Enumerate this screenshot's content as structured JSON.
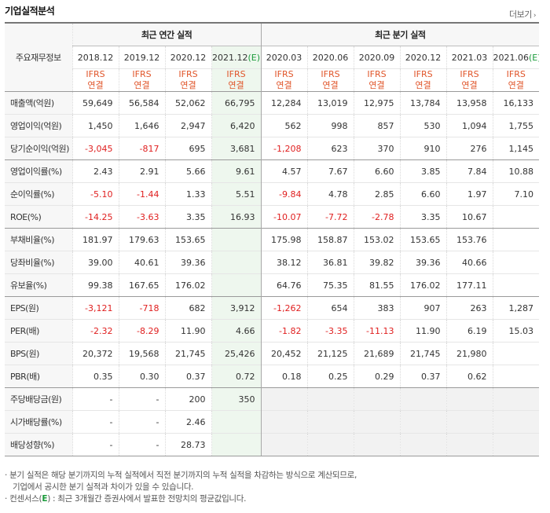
{
  "title": "기업실적분석",
  "more_label": "더보기",
  "more_arrow": "›",
  "main_label": "주요재무정보",
  "annual_group": "최근 연간 실적",
  "quarter_group": "최근 분기 실적",
  "columns": [
    "2018.12",
    "2019.12",
    "2020.12",
    "2021.12(E)",
    "2020.03",
    "2020.06",
    "2020.09",
    "2020.12",
    "2021.03",
    "2021.06(E)"
  ],
  "ifrs_top": "IFRS",
  "ifrs_bottom": "연결",
  "rows": [
    {
      "label": "매출액(억원)",
      "values": [
        "59,649",
        "56,584",
        "52,062",
        "66,795",
        "12,284",
        "13,019",
        "12,975",
        "13,784",
        "13,958",
        "16,133"
      ]
    },
    {
      "label": "영업이익(억원)",
      "values": [
        "1,450",
        "1,646",
        "2,947",
        "6,420",
        "562",
        "998",
        "857",
        "530",
        "1,094",
        "1,755"
      ]
    },
    {
      "label": "당기순이익(억원)",
      "values": [
        "-3,045",
        "-817",
        "695",
        "3,681",
        "-1,208",
        "623",
        "370",
        "910",
        "276",
        "1,145"
      ]
    },
    {
      "label": "영업이익률(%)",
      "values": [
        "2.43",
        "2.91",
        "5.66",
        "9.61",
        "4.57",
        "7.67",
        "6.60",
        "3.85",
        "7.84",
        "10.88"
      ]
    },
    {
      "label": "순이익률(%)",
      "values": [
        "-5.10",
        "-1.44",
        "1.33",
        "5.51",
        "-9.84",
        "4.78",
        "2.85",
        "6.60",
        "1.97",
        "7.10"
      ]
    },
    {
      "label": "ROE(%)",
      "values": [
        "-14.25",
        "-3.63",
        "3.35",
        "16.93",
        "-10.07",
        "-7.72",
        "-2.78",
        "3.35",
        "10.67",
        ""
      ]
    },
    {
      "label": "부채비율(%)",
      "values": [
        "181.97",
        "179.63",
        "153.65",
        "",
        "175.98",
        "158.87",
        "153.02",
        "153.65",
        "153.76",
        ""
      ]
    },
    {
      "label": "당좌비율(%)",
      "values": [
        "39.00",
        "40.61",
        "39.36",
        "",
        "38.12",
        "36.81",
        "39.82",
        "39.36",
        "40.66",
        ""
      ]
    },
    {
      "label": "유보율(%)",
      "values": [
        "99.38",
        "167.65",
        "176.02",
        "",
        "64.76",
        "75.35",
        "81.55",
        "176.02",
        "177.11",
        ""
      ]
    },
    {
      "label": "EPS(원)",
      "values": [
        "-3,121",
        "-718",
        "682",
        "3,912",
        "-1,262",
        "654",
        "383",
        "907",
        "263",
        "1,287"
      ]
    },
    {
      "label": "PER(배)",
      "values": [
        "-2.32",
        "-8.29",
        "11.90",
        "4.66",
        "-1.82",
        "-3.35",
        "-11.13",
        "11.90",
        "6.19",
        "15.03"
      ]
    },
    {
      "label": "BPS(원)",
      "values": [
        "20,372",
        "19,568",
        "21,745",
        "25,426",
        "20,452",
        "21,125",
        "21,689",
        "21,745",
        "21,980",
        ""
      ]
    },
    {
      "label": "PBR(배)",
      "values": [
        "0.35",
        "0.30",
        "0.37",
        "0.72",
        "0.18",
        "0.25",
        "0.29",
        "0.37",
        "0.62",
        ""
      ]
    },
    {
      "label": "주당배당금(원)",
      "values": [
        "-",
        "-",
        "200",
        "350",
        null,
        null,
        null,
        null,
        null,
        null
      ]
    },
    {
      "label": "시가배당률(%)",
      "values": [
        "-",
        "-",
        "2.46",
        "",
        null,
        null,
        null,
        null,
        null,
        null
      ]
    },
    {
      "label": "배당성향(%)",
      "values": [
        "-",
        "-",
        "28.73",
        "",
        null,
        null,
        null,
        null,
        null,
        null
      ]
    }
  ],
  "notes": {
    "line1": "· 분기 실적은 해당 분기까지의 누적 실적에서 직전 분기까지의 누적 실적을 차감하는 방식으로 계산되므로,",
    "line2": "기업에서 공시한 분기 실적과 차이가 있을 수 있습니다.",
    "line3_a": "· 컨센서스(",
    "line3_e": "E",
    "line3_b": ") : 최근 3개월간 증권사에서 발표한 전망치의 평균값입니다."
  }
}
